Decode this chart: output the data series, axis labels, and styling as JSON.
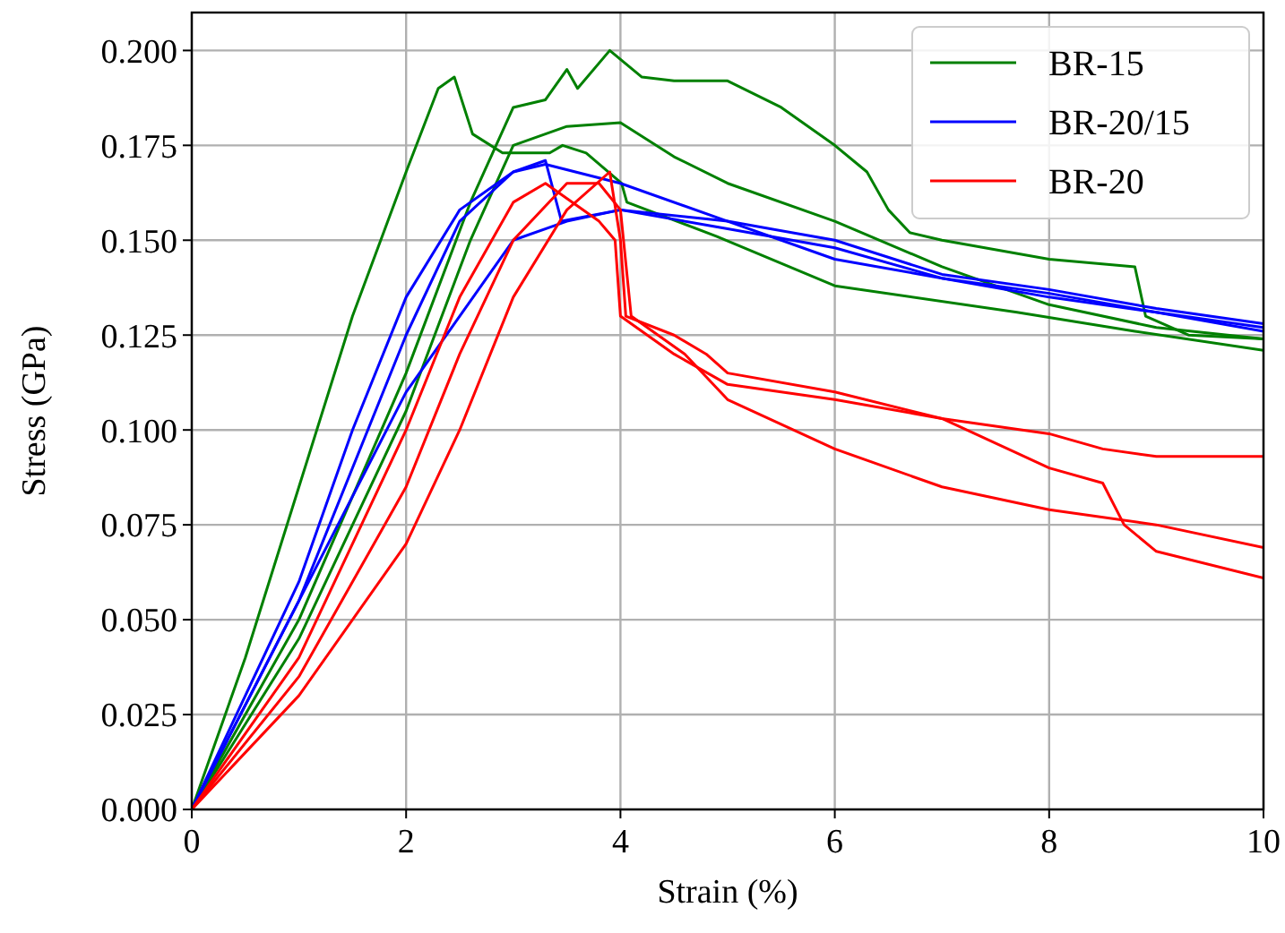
{
  "chart_data": {
    "type": "line",
    "xlabel": "Strain (%)",
    "ylabel": "Stress (GPa)",
    "xlim": [
      0,
      10
    ],
    "ylim": [
      0,
      0.21
    ],
    "xticks": [
      0,
      2,
      4,
      6,
      8,
      10
    ],
    "yticks": [
      {
        "value": 0,
        "label": "0.000"
      },
      {
        "value": 0.025,
        "label": "0.025"
      },
      {
        "value": 0.05,
        "label": "0.050"
      },
      {
        "value": 0.075,
        "label": "0.075"
      },
      {
        "value": 0.1,
        "label": "0.100"
      },
      {
        "value": 0.125,
        "label": "0.125"
      },
      {
        "value": 0.15,
        "label": "0.150"
      },
      {
        "value": 0.175,
        "label": "0.175"
      },
      {
        "value": 0.2,
        "label": "0.200"
      }
    ],
    "grid": true,
    "legend": "top right",
    "line_style": "solid",
    "marker": "none",
    "series": [
      {
        "name": "BR-15",
        "color": "#008000",
        "x": [
          0,
          0.5,
          1,
          1.5,
          2,
          2.3,
          2.45,
          2.62,
          2.9,
          3.34,
          3.46,
          3.68,
          4.01,
          4.06,
          4.9,
          6,
          7.7,
          8.8,
          10
        ],
        "values": [
          0,
          0.04,
          0.085,
          0.13,
          0.168,
          0.19,
          0.193,
          0.178,
          0.173,
          0.173,
          0.175,
          0.173,
          0.165,
          0.16,
          0.151,
          0.138,
          0.131,
          0.126,
          0.121
        ]
      },
      {
        "color": "#008000",
        "x": [
          0,
          1,
          2,
          2.6,
          3,
          3.3,
          3.5,
          3.6,
          3.9,
          4.2,
          4.5,
          5,
          5.5,
          6,
          6.3,
          6.5,
          6.7,
          7,
          8,
          8.8,
          8.9,
          9.3,
          10
        ],
        "values": [
          0,
          0.05,
          0.115,
          0.16,
          0.185,
          0.187,
          0.195,
          0.19,
          0.2,
          0.193,
          0.192,
          0.192,
          0.185,
          0.175,
          0.168,
          0.158,
          0.152,
          0.15,
          0.145,
          0.143,
          0.13,
          0.125,
          0.124
        ]
      },
      {
        "color": "#008000",
        "x": [
          0,
          1,
          2,
          2.6,
          3,
          3.5,
          4,
          4.5,
          5,
          6,
          7,
          8,
          9,
          10
        ],
        "values": [
          0,
          0.045,
          0.105,
          0.15,
          0.175,
          0.18,
          0.181,
          0.172,
          0.165,
          0.155,
          0.143,
          0.133,
          0.127,
          0.124
        ]
      },
      {
        "name": "BR-20/15",
        "color": "#0000ff",
        "x": [
          0,
          1,
          1.5,
          2,
          2.5,
          3,
          3.3,
          3.45,
          4,
          5,
          6,
          7,
          8,
          9,
          10
        ],
        "values": [
          0,
          0.06,
          0.1,
          0.135,
          0.158,
          0.168,
          0.171,
          0.155,
          0.158,
          0.153,
          0.148,
          0.14,
          0.135,
          0.131,
          0.126
        ]
      },
      {
        "color": "#0000ff",
        "x": [
          0,
          1,
          2,
          2.5,
          3,
          3.3,
          4,
          5,
          6,
          7,
          8,
          9,
          10
        ],
        "values": [
          0,
          0.055,
          0.125,
          0.155,
          0.168,
          0.17,
          0.165,
          0.155,
          0.145,
          0.14,
          0.136,
          0.131,
          0.127
        ]
      },
      {
        "color": "#0000ff",
        "x": [
          0,
          1,
          2,
          2.5,
          3,
          3.5,
          4,
          5,
          6,
          7,
          8,
          9,
          10
        ],
        "values": [
          0,
          0.055,
          0.11,
          0.13,
          0.15,
          0.155,
          0.158,
          0.155,
          0.15,
          0.141,
          0.137,
          0.132,
          0.128
        ]
      },
      {
        "name": "BR-20",
        "color": "#ff0000",
        "x": [
          0,
          1,
          2,
          2.5,
          3,
          3.3,
          3.8,
          3.95,
          4,
          4.5,
          5,
          6,
          7,
          8,
          8.5,
          9,
          10
        ],
        "values": [
          0,
          0.04,
          0.1,
          0.135,
          0.16,
          0.165,
          0.155,
          0.15,
          0.13,
          0.12,
          0.112,
          0.108,
          0.103,
          0.099,
          0.095,
          0.093,
          0.093
        ]
      },
      {
        "color": "#ff0000",
        "x": [
          0,
          1,
          2,
          2.5,
          3,
          3.5,
          3.8,
          4,
          4.1,
          4.6,
          5,
          6,
          7,
          8,
          9,
          10
        ],
        "values": [
          0,
          0.035,
          0.085,
          0.12,
          0.15,
          0.165,
          0.165,
          0.158,
          0.13,
          0.12,
          0.108,
          0.095,
          0.085,
          0.079,
          0.075,
          0.069
        ]
      },
      {
        "color": "#ff0000",
        "x": [
          0,
          1,
          2,
          2.5,
          3,
          3.5,
          3.9,
          4,
          4.05,
          4.5,
          4.8,
          5,
          6,
          7,
          8,
          8.5,
          8.7,
          9,
          10
        ],
        "values": [
          0,
          0.03,
          0.07,
          0.1,
          0.135,
          0.158,
          0.168,
          0.15,
          0.13,
          0.125,
          0.12,
          0.115,
          0.11,
          0.103,
          0.09,
          0.086,
          0.075,
          0.068,
          0.061
        ]
      }
    ]
  }
}
